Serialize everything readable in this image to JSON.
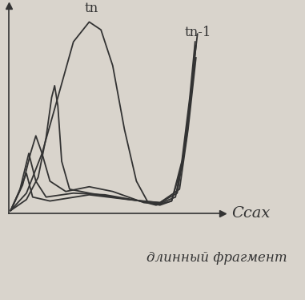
{
  "chart_data": {
    "type": "line",
    "x_label": "Cсах",
    "annotations": [
      "длинный фрагмент"
    ],
    "xlim": [
      0,
      100
    ],
    "ylim": [
      0,
      100
    ],
    "tick_labels": false,
    "color": "#333333",
    "series": [
      {
        "name": "tn",
        "x": [
          0.7,
          8.1,
          15.4,
          22.8,
          30.1,
          37.5,
          43,
          48.5,
          54,
          59.6,
          65.1,
          70.6,
          76.1,
          80.9,
          84.6,
          87.1
        ],
        "values": [
          1.2,
          9.6,
          28.8,
          55.8,
          82.7,
          92.3,
          88.5,
          71.2,
          40.4,
          15.4,
          5,
          3.8,
          5.8,
          25,
          55.8,
          82.7
        ]
      },
      {
        "name": "tn-1",
        "x": [
          0.7,
          8.1,
          13.6,
          17.3,
          19.9,
          21.3,
          22.8,
          24.6,
          28.3,
          37.5,
          48.5,
          61.4,
          68.8,
          76.1,
          80.9,
          84.6,
          87.5
        ],
        "values": [
          1.2,
          6.5,
          17.3,
          36.5,
          55.8,
          61.5,
          51.9,
          25,
          11.5,
          9.6,
          7.7,
          5.8,
          3.8,
          5.8,
          23.1,
          51.9,
          80.8
        ]
      },
      {
        "x": [
          0.7,
          6.3,
          10,
          12.5,
          15.4,
          19.1,
          26.5,
          37.5,
          48.5,
          63.2,
          70.6,
          77.9,
          82.4,
          86,
          88.2
        ],
        "values": [
          1.2,
          13.5,
          28.8,
          37.3,
          28.8,
          15.4,
          10.4,
          12.7,
          10.4,
          5,
          4.6,
          7.7,
          32.7,
          67.3,
          86.5
        ]
      },
      {
        "x": [
          0.7,
          5.1,
          9.2,
          12.5,
          17.3,
          30.1,
          44.9,
          61.4,
          70.6,
          78.7,
          83.1,
          86.8
        ],
        "values": [
          1.2,
          11.5,
          28.8,
          15.4,
          7.7,
          9.6,
          8.8,
          5.8,
          5,
          9.6,
          36.5,
          71.2
        ]
      },
      {
        "x": [
          0.7,
          4.4,
          8.1,
          11,
          19.1,
          37.5,
          55.9,
          70.6,
          79.8,
          83.8,
          87.5
        ],
        "values": [
          1.2,
          9.6,
          19.2,
          7.7,
          5.8,
          8.8,
          6.5,
          5,
          11.5,
          40.4,
          75
        ]
      }
    ]
  }
}
